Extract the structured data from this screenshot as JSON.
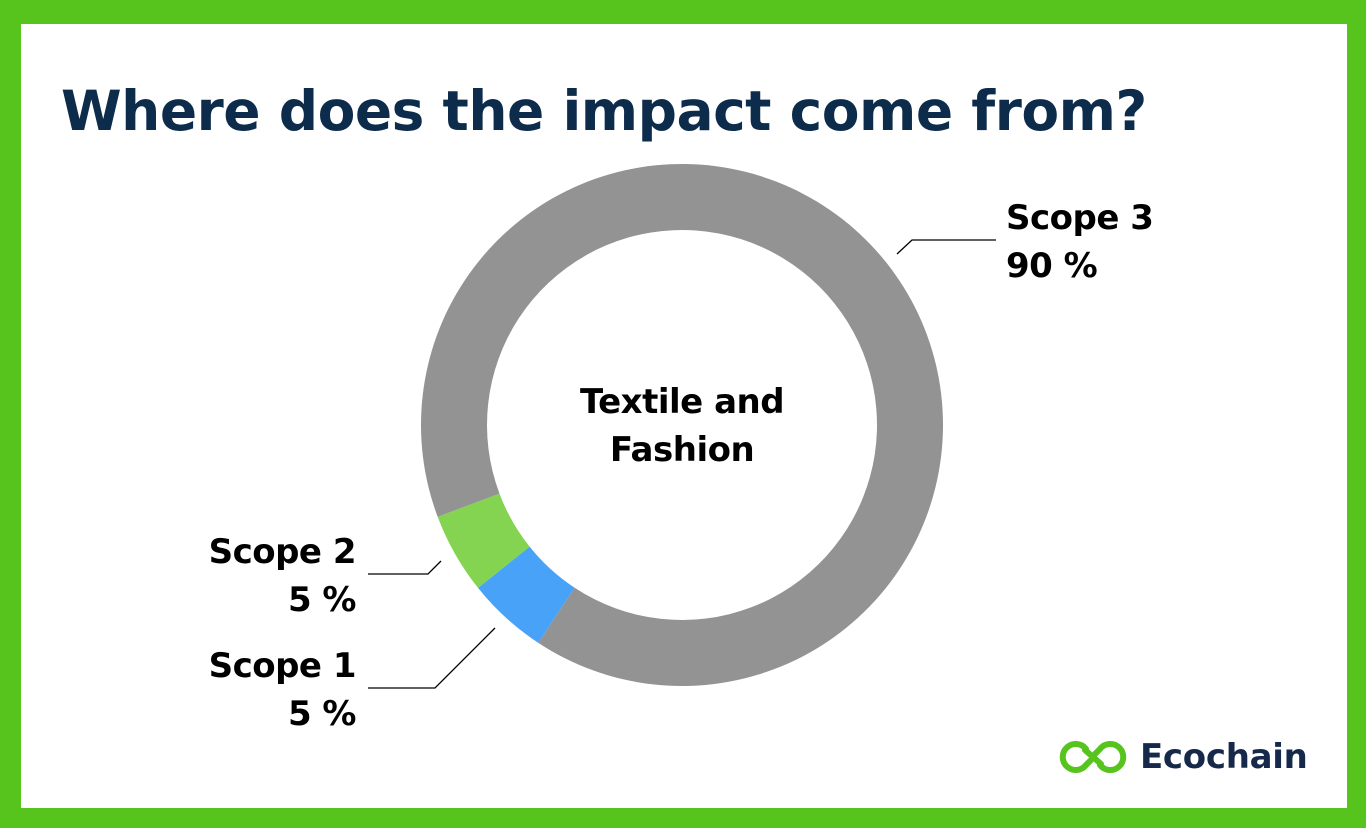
{
  "header": {
    "title": "Where does the impact come from?"
  },
  "center_label": {
    "line1": "Textile and",
    "line2": "Fashion"
  },
  "labels": {
    "scope3": {
      "name": "Scope 3",
      "value": "90 %"
    },
    "scope2": {
      "name": "Scope 2",
      "value": "5 %"
    },
    "scope1": {
      "name": "Scope 1",
      "value": "5 %"
    }
  },
  "brand": {
    "name": "Ecochain",
    "icon": "chain-link-icon",
    "color": "#56c41d"
  },
  "colors": {
    "frame": "#56c41d",
    "title": "#0d2b4b",
    "scope1": "#48a2f7",
    "scope2": "#84d452",
    "scope3": "#939393"
  },
  "chart_data": {
    "type": "pie",
    "variant": "donut",
    "title": "Where does the impact come from?",
    "center_text": "Textile and Fashion",
    "categories": [
      "Scope 1",
      "Scope 2",
      "Scope 3"
    ],
    "values": [
      5,
      5,
      90
    ],
    "unit": "%",
    "colors": [
      "#48a2f7",
      "#84d452",
      "#939393"
    ],
    "start_angle_deg": 123.4,
    "direction": "clockwise",
    "legend": "none (direct labels with leader lines)"
  }
}
